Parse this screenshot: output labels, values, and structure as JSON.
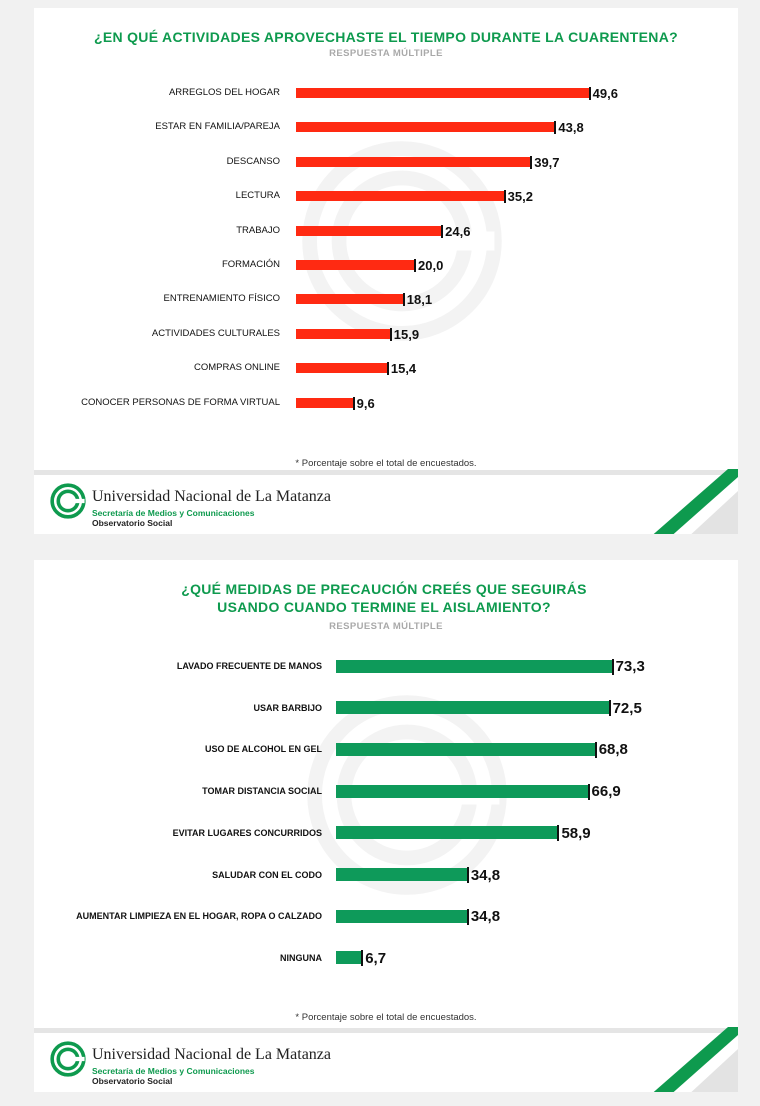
{
  "chart_data": [
    {
      "type": "bar",
      "orientation": "horizontal",
      "title": "¿EN QUÉ ACTIVIDADES APROVECHASTE EL TIEMPO DURANTE LA CUARENTENA?",
      "subtitle": "RESPUESTA MÚLTIPLE",
      "categories": [
        "ARREGLOS DEL HOGAR",
        "ESTAR EN FAMILIA/PAREJA",
        "DESCANSO",
        "LECTURA",
        "TRABAJO",
        "FORMACIÓN",
        "ENTRENAMIENTO FÍSICO",
        "ACTIVIDADES CULTURALES",
        "COMPRAS ONLINE",
        "CONOCER PERSONAS DE FORMA VIRTUAL"
      ],
      "values": [
        49.6,
        43.8,
        39.7,
        35.2,
        24.6,
        20.0,
        18.1,
        15.9,
        15.4,
        9.6
      ],
      "value_labels": [
        "49,6",
        "43,8",
        "39,7",
        "35,2",
        "24,6",
        "20,0",
        "18,1",
        "15,9",
        "15,4",
        "9,6"
      ],
      "bar_color": "#ff2a12",
      "footnote": "* Porcentaje sobre el total de encuestados.",
      "grid": false,
      "legend": "none"
    },
    {
      "type": "bar",
      "orientation": "horizontal",
      "title": "¿QUÉ MEDIDAS DE PRECAUCIÓN CREÉS QUE SEGUIRÁS USANDO CUANDO TERMINE EL AISLAMIENTO?",
      "subtitle": "RESPUESTA MÚLTIPLE",
      "categories": [
        "LAVADO FRECUENTE DE MANOS",
        "USAR BARBIJO",
        "USO DE ALCOHOL EN GEL",
        "TOMAR DISTANCIA SOCIAL",
        "EVITAR LUGARES CONCURRIDOS",
        "SALUDAR CON EL CODO",
        "AUMENTAR LIMPIEZA EN EL HOGAR, ROPA O CALZADO",
        "NINGUNA"
      ],
      "values": [
        73.3,
        72.5,
        68.8,
        66.9,
        58.9,
        34.8,
        34.8,
        6.7
      ],
      "value_labels": [
        "73,3",
        "72,5",
        "68,8",
        "66,9",
        "58,9",
        "34,8",
        "34,8",
        "6,7"
      ],
      "bar_color": "#0e9a5a",
      "footnote": "* Porcentaje sobre el total de encuestados.",
      "grid": false,
      "legend": "none"
    }
  ],
  "footer": {
    "university": "Universidad Nacional de La Matanza",
    "secretariat": "Secretaría de Medios y Comunicaciones",
    "observatory": "Observatorio Social"
  },
  "colors": {
    "accent_green": "#0e9a4e",
    "bar_red": "#ff2a12",
    "bar_green": "#0e9a5a",
    "subtitle_gray": "#a9a9a9"
  },
  "icons": {
    "logo": "unlam-logo-icon",
    "watermark": "unlam-watermark-icon",
    "corner": "green-stripes-decoration"
  }
}
